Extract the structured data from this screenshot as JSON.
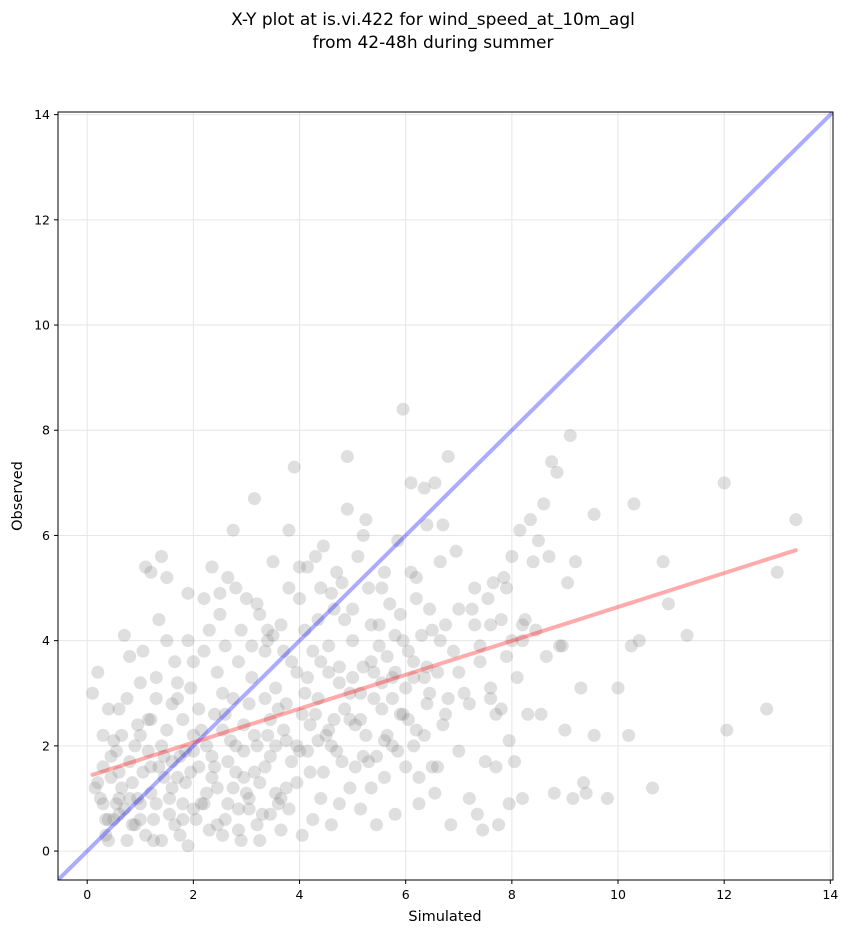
{
  "chart_data": {
    "type": "scatter",
    "title_lines": [
      "X-Y plot at is.vi.422 for wind_speed_at_10m_agl",
      "from 42-48h during summer"
    ],
    "xlabel": "Simulated",
    "ylabel": "Observed",
    "xlim": [
      -0.55,
      14.05
    ],
    "ylim": [
      -0.55,
      14.05
    ],
    "x_ticks": [
      0,
      2,
      4,
      6,
      8,
      10,
      12,
      14
    ],
    "y_ticks": [
      0,
      2,
      4,
      6,
      8,
      10,
      12,
      14
    ],
    "grid": true,
    "point_color": "#808080",
    "point_opacity": 0.25,
    "identity_line": {
      "color": "#0000ff",
      "opacity": 0.33,
      "x": [
        -0.55,
        14.05
      ],
      "y": [
        -0.55,
        14.05
      ]
    },
    "fit_line": {
      "color": "#ff0000",
      "opacity": 0.33,
      "x": [
        0.1,
        13.35
      ],
      "y": [
        1.45,
        5.72
      ]
    },
    "points": [
      [
        0.1,
        3.0
      ],
      [
        0.2,
        3.4
      ],
      [
        0.15,
        1.2
      ],
      [
        0.3,
        1.6
      ],
      [
        0.35,
        0.6
      ],
      [
        0.4,
        2.7
      ],
      [
        0.3,
        0.9
      ],
      [
        0.4,
        0.2
      ],
      [
        0.45,
        1.4
      ],
      [
        0.5,
        0.6
      ],
      [
        0.55,
        1.9
      ],
      [
        0.6,
        1.0
      ],
      [
        0.65,
        2.2
      ],
      [
        0.7,
        4.1
      ],
      [
        0.75,
        2.9
      ],
      [
        0.8,
        3.7
      ],
      [
        0.85,
        1.3
      ],
      [
        0.9,
        0.5
      ],
      [
        0.95,
        2.4
      ],
      [
        1.0,
        0.9
      ],
      [
        1.05,
        3.8
      ],
      [
        1.1,
        5.4
      ],
      [
        1.15,
        2.5
      ],
      [
        1.2,
        1.6
      ],
      [
        1.25,
        0.2
      ],
      [
        1.3,
        3.3
      ],
      [
        1.35,
        4.4
      ],
      [
        1.4,
        5.6
      ],
      [
        1.45,
        1.8
      ],
      [
        1.5,
        5.2
      ],
      [
        1.55,
        0.7
      ],
      [
        1.6,
        2.8
      ],
      [
        1.65,
        3.6
      ],
      [
        1.7,
        1.4
      ],
      [
        1.75,
        0.3
      ],
      [
        1.8,
        2.5
      ],
      [
        1.85,
        1.9
      ],
      [
        1.9,
        4.9
      ],
      [
        1.95,
        3.1
      ],
      [
        2.0,
        0.8
      ],
      [
        0.3,
        2.2
      ],
      [
        0.6,
        0.7
      ],
      [
        0.9,
        2.0
      ],
      [
        1.2,
        1.1
      ],
      [
        1.5,
        2.3
      ],
      [
        1.8,
        0.9
      ],
      [
        2.1,
        1.6
      ],
      [
        2.2,
        3.8
      ],
      [
        2.3,
        0.4
      ],
      [
        2.35,
        5.4
      ],
      [
        2.4,
        2.6
      ],
      [
        2.45,
        1.2
      ],
      [
        2.5,
        4.9
      ],
      [
        2.55,
        3.0
      ],
      [
        2.6,
        0.6
      ],
      [
        2.65,
        5.2
      ],
      [
        2.7,
        2.1
      ],
      [
        2.75,
        6.1
      ],
      [
        2.8,
        1.5
      ],
      [
        2.85,
        3.6
      ],
      [
        2.9,
        0.2
      ],
      [
        2.95,
        2.4
      ],
      [
        3.0,
        4.8
      ],
      [
        3.05,
        1.0
      ],
      [
        3.1,
        3.3
      ],
      [
        3.15,
        6.7
      ],
      [
        3.2,
        2.0
      ],
      [
        3.25,
        4.5
      ],
      [
        3.3,
        0.7
      ],
      [
        3.35,
        2.9
      ],
      [
        3.4,
        4.0
      ],
      [
        3.45,
        1.8
      ],
      [
        3.5,
        5.5
      ],
      [
        3.55,
        3.1
      ],
      [
        3.6,
        0.9
      ],
      [
        3.65,
        4.3
      ],
      [
        3.7,
        2.3
      ],
      [
        3.75,
        1.2
      ],
      [
        3.8,
        6.1
      ],
      [
        3.85,
        3.6
      ],
      [
        3.9,
        7.3
      ],
      [
        3.95,
        2.0
      ],
      [
        4.0,
        4.8
      ],
      [
        4.05,
        0.3
      ],
      [
        4.1,
        3.0
      ],
      [
        4.15,
        5.4
      ],
      [
        4.2,
        1.5
      ],
      [
        4.25,
        3.8
      ],
      [
        4.3,
        2.6
      ],
      [
        4.35,
        4.4
      ],
      [
        4.4,
        1.0
      ],
      [
        4.45,
        5.8
      ],
      [
        4.5,
        2.2
      ],
      [
        4.55,
        3.4
      ],
      [
        4.6,
        0.5
      ],
      [
        4.65,
        4.6
      ],
      [
        4.7,
        1.9
      ],
      [
        4.75,
        3.2
      ],
      [
        4.8,
        5.1
      ],
      [
        4.85,
        2.7
      ],
      [
        4.9,
        7.5
      ],
      [
        4.95,
        1.2
      ],
      [
        5.0,
        4.0
      ],
      [
        5.05,
        2.4
      ],
      [
        5.1,
        5.6
      ],
      [
        5.15,
        0.8
      ],
      [
        5.2,
        3.5
      ],
      [
        5.25,
        6.3
      ],
      [
        5.3,
        1.7
      ],
      [
        5.35,
        4.3
      ],
      [
        5.4,
        2.9
      ],
      [
        5.45,
        0.5
      ],
      [
        5.5,
        3.9
      ],
      [
        5.55,
        5.0
      ],
      [
        5.6,
        1.4
      ],
      [
        5.65,
        2.2
      ],
      [
        5.7,
        4.7
      ],
      [
        5.75,
        3.3
      ],
      [
        5.8,
        0.7
      ],
      [
        5.85,
        5.9
      ],
      [
        5.9,
        2.6
      ],
      [
        5.95,
        8.4
      ],
      [
        6.0,
        1.6
      ],
      [
        6.05,
        3.8
      ],
      [
        6.1,
        7.0
      ],
      [
        6.15,
        2.0
      ],
      [
        6.2,
        5.2
      ],
      [
        6.25,
        0.9
      ],
      [
        6.3,
        4.1
      ],
      [
        6.35,
        6.9
      ],
      [
        6.4,
        2.8
      ],
      [
        6.45,
        4.6
      ],
      [
        6.5,
        1.6
      ],
      [
        6.55,
        7.0
      ],
      [
        6.6,
        3.4
      ],
      [
        6.65,
        5.5
      ],
      [
        6.7,
        2.4
      ],
      [
        6.75,
        4.3
      ],
      [
        6.8,
        7.5
      ],
      [
        6.85,
        0.5
      ],
      [
        6.9,
        3.8
      ],
      [
        6.95,
        5.7
      ],
      [
        7.0,
        1.9
      ],
      [
        7.1,
        3.0
      ],
      [
        7.2,
        1.0
      ],
      [
        7.25,
        4.6
      ],
      [
        7.3,
        5.0
      ],
      [
        7.35,
        0.7
      ],
      [
        7.4,
        3.6
      ],
      [
        7.45,
        0.4
      ],
      [
        7.5,
        1.7
      ],
      [
        7.55,
        4.8
      ],
      [
        7.6,
        2.9
      ],
      [
        7.65,
        5.1
      ],
      [
        7.7,
        1.6
      ],
      [
        7.75,
        0.5
      ],
      [
        7.8,
        4.4
      ],
      [
        7.85,
        5.2
      ],
      [
        7.9,
        3.7
      ],
      [
        7.95,
        2.1
      ],
      [
        8.0,
        5.6
      ],
      [
        8.05,
        1.7
      ],
      [
        8.1,
        3.3
      ],
      [
        8.15,
        6.1
      ],
      [
        8.2,
        1.0
      ],
      [
        8.25,
        4.4
      ],
      [
        8.3,
        2.6
      ],
      [
        8.35,
        6.3
      ],
      [
        8.4,
        5.5
      ],
      [
        8.5,
        5.9
      ],
      [
        8.55,
        2.6
      ],
      [
        8.6,
        6.6
      ],
      [
        8.65,
        3.7
      ],
      [
        8.75,
        7.4
      ],
      [
        8.8,
        1.1
      ],
      [
        8.85,
        7.2
      ],
      [
        8.9,
        3.9
      ],
      [
        9.0,
        2.3
      ],
      [
        9.05,
        5.1
      ],
      [
        9.1,
        7.9
      ],
      [
        9.15,
        1.0
      ],
      [
        9.3,
        3.1
      ],
      [
        9.35,
        1.3
      ],
      [
        9.4,
        1.1
      ],
      [
        9.55,
        6.4
      ],
      [
        9.55,
        2.2
      ],
      [
        9.8,
        1.0
      ],
      [
        10.0,
        3.1
      ],
      [
        10.2,
        2.2
      ],
      [
        10.25,
        3.9
      ],
      [
        10.3,
        6.6
      ],
      [
        10.4,
        4.0
      ],
      [
        10.65,
        1.2
      ],
      [
        10.85,
        5.5
      ],
      [
        10.95,
        4.7
      ],
      [
        11.3,
        4.1
      ],
      [
        12.0,
        7.0
      ],
      [
        12.05,
        2.3
      ],
      [
        12.8,
        2.7
      ],
      [
        13.0,
        5.3
      ],
      [
        13.35,
        6.3
      ],
      [
        0.2,
        1.3
      ],
      [
        0.5,
        2.1
      ],
      [
        0.7,
        0.8
      ],
      [
        0.8,
        1.7
      ],
      [
        1.0,
        2.2
      ],
      [
        1.1,
        0.3
      ],
      [
        1.3,
        0.9
      ],
      [
        1.4,
        2.0
      ],
      [
        1.6,
        1.2
      ],
      [
        1.7,
        2.9
      ],
      [
        1.9,
        0.1
      ],
      [
        2.0,
        1.9
      ],
      [
        2.1,
        2.7
      ],
      [
        2.15,
        0.9
      ],
      [
        2.25,
        2.0
      ],
      [
        2.35,
        1.4
      ],
      [
        2.45,
        3.4
      ],
      [
        2.55,
        0.3
      ],
      [
        2.65,
        1.7
      ],
      [
        2.75,
        2.9
      ],
      [
        2.85,
        0.8
      ],
      [
        2.95,
        1.9
      ],
      [
        3.05,
        2.8
      ],
      [
        3.15,
        1.5
      ],
      [
        3.25,
        0.2
      ],
      [
        3.35,
        3.8
      ],
      [
        3.45,
        2.5
      ],
      [
        3.55,
        1.1
      ],
      [
        3.65,
        0.4
      ],
      [
        3.75,
        2.8
      ],
      [
        3.85,
        1.7
      ],
      [
        3.95,
        3.4
      ],
      [
        4.05,
        2.6
      ],
      [
        4.15,
        1.9
      ],
      [
        4.25,
        0.6
      ],
      [
        4.35,
        2.9
      ],
      [
        4.45,
        1.5
      ],
      [
        4.55,
        3.9
      ],
      [
        4.65,
        2.5
      ],
      [
        4.75,
        0.9
      ],
      [
        4.85,
        4.4
      ],
      [
        4.95,
        3.0
      ],
      [
        5.05,
        1.6
      ],
      [
        5.15,
        3.0
      ],
      [
        5.25,
        2.2
      ],
      [
        5.35,
        3.6
      ],
      [
        5.45,
        1.8
      ],
      [
        5.55,
        2.7
      ],
      [
        5.65,
        3.7
      ],
      [
        5.75,
        2.0
      ],
      [
        5.85,
        1.9
      ],
      [
        5.95,
        4.0
      ],
      [
        6.05,
        2.5
      ],
      [
        6.15,
        3.3
      ],
      [
        6.25,
        1.4
      ],
      [
        6.35,
        2.2
      ],
      [
        6.45,
        3.0
      ],
      [
        6.55,
        1.1
      ],
      [
        6.65,
        4.0
      ],
      [
        6.75,
        2.6
      ],
      [
        0.25,
        1.0
      ],
      [
        0.45,
        1.8
      ],
      [
        0.65,
        1.2
      ],
      [
        0.85,
        0.5
      ],
      [
        1.05,
        1.5
      ],
      [
        1.25,
        0.6
      ],
      [
        1.45,
        1.4
      ],
      [
        1.65,
        0.5
      ],
      [
        1.85,
        1.3
      ],
      [
        2.05,
        0.6
      ],
      [
        2.25,
        1.1
      ],
      [
        2.45,
        0.5
      ],
      [
        2.65,
        0.9
      ],
      [
        2.85,
        0.4
      ],
      [
        3.05,
        0.8
      ],
      [
        3.25,
        1.3
      ],
      [
        3.45,
        0.7
      ],
      [
        3.65,
        1.0
      ],
      [
        0.35,
        0.3
      ],
      [
        0.55,
        0.9
      ],
      [
        0.75,
        0.2
      ],
      [
        0.95,
        1.0
      ],
      [
        1.15,
        1.9
      ],
      [
        1.35,
        1.6
      ],
      [
        1.55,
        1.0
      ],
      [
        1.75,
        1.8
      ],
      [
        1.95,
        1.5
      ],
      [
        2.15,
        2.3
      ],
      [
        2.35,
        1.8
      ],
      [
        2.55,
        2.3
      ],
      [
        2.75,
        1.2
      ],
      [
        2.95,
        1.4
      ],
      [
        3.15,
        2.2
      ],
      [
        3.35,
        1.6
      ],
      [
        3.55,
        2.0
      ],
      [
        3.75,
        2.1
      ],
      [
        3.95,
        1.3
      ],
      [
        4.15,
        3.3
      ],
      [
        4.35,
        2.1
      ],
      [
        4.55,
        2.3
      ],
      [
        4.75,
        3.5
      ],
      [
        4.95,
        2.5
      ],
      [
        5.15,
        2.5
      ],
      [
        5.35,
        1.2
      ],
      [
        5.55,
        3.2
      ],
      [
        5.75,
        2.9
      ],
      [
        5.95,
        2.6
      ],
      [
        6.15,
        3.6
      ],
      [
        6.35,
        3.3
      ],
      [
        0.6,
        2.7
      ],
      [
        1.0,
        3.2
      ],
      [
        1.3,
        2.9
      ],
      [
        1.7,
        3.2
      ],
      [
        2.0,
        3.6
      ],
      [
        2.3,
        4.2
      ],
      [
        2.6,
        3.9
      ],
      [
        2.9,
        4.2
      ],
      [
        3.2,
        4.7
      ],
      [
        3.5,
        4.1
      ],
      [
        3.8,
        5.0
      ],
      [
        4.1,
        4.2
      ],
      [
        4.4,
        5.0
      ],
      [
        4.7,
        5.3
      ],
      [
        5.0,
        4.6
      ],
      [
        5.3,
        5.0
      ],
      [
        5.6,
        5.3
      ],
      [
        5.9,
        4.5
      ],
      [
        6.2,
        4.8
      ],
      [
        6.5,
        4.2
      ],
      [
        0.4,
        0.6
      ],
      [
        0.6,
        1.5
      ],
      [
        0.8,
        1.0
      ],
      [
        1.0,
        0.6
      ],
      [
        1.2,
        2.5
      ],
      [
        1.4,
        0.2
      ],
      [
        1.6,
        1.7
      ],
      [
        1.8,
        0.6
      ],
      [
        2.0,
        2.2
      ],
      [
        2.2,
        0.9
      ],
      [
        2.4,
        1.6
      ],
      [
        2.6,
        2.6
      ],
      [
        2.8,
        2.0
      ],
      [
        3.0,
        1.1
      ],
      [
        3.2,
        0.5
      ],
      [
        3.4,
        2.2
      ],
      [
        3.6,
        2.7
      ],
      [
        3.8,
        0.8
      ],
      [
        4.0,
        1.9
      ],
      [
        4.2,
        2.4
      ],
      [
        4.4,
        3.6
      ],
      [
        4.6,
        2.0
      ],
      [
        4.8,
        1.7
      ],
      [
        5.0,
        3.3
      ],
      [
        5.2,
        1.8
      ],
      [
        5.4,
        3.4
      ],
      [
        5.6,
        2.1
      ],
      [
        5.8,
        3.4
      ],
      [
        6.0,
        3.1
      ],
      [
        6.2,
        2.3
      ],
      [
        6.4,
        3.5
      ],
      [
        6.6,
        1.6
      ],
      [
        6.8,
        2.9
      ],
      [
        7.0,
        3.4
      ],
      [
        7.2,
        2.8
      ],
      [
        7.4,
        3.9
      ],
      [
        7.6,
        3.1
      ],
      [
        7.8,
        2.7
      ],
      [
        8.0,
        4.0
      ],
      [
        8.2,
        4.0
      ],
      [
        1.2,
        5.3
      ],
      [
        1.5,
        4.0
      ],
      [
        1.9,
        4.0
      ],
      [
        2.2,
        4.8
      ],
      [
        2.5,
        4.5
      ],
      [
        2.8,
        5.0
      ],
      [
        3.1,
        3.9
      ],
      [
        3.4,
        4.2
      ],
      [
        3.7,
        3.8
      ],
      [
        4.0,
        5.4
      ],
      [
        4.3,
        5.6
      ],
      [
        4.6,
        4.9
      ],
      [
        4.9,
        6.5
      ],
      [
        5.2,
        6.0
      ],
      [
        5.5,
        4.3
      ],
      [
        5.8,
        4.1
      ],
      [
        6.1,
        5.3
      ],
      [
        6.4,
        6.2
      ],
      [
        6.7,
        6.2
      ],
      [
        7.0,
        4.6
      ],
      [
        7.3,
        4.3
      ],
      [
        7.6,
        4.3
      ],
      [
        7.9,
        5.0
      ],
      [
        8.2,
        4.3
      ],
      [
        8.45,
        4.2
      ],
      [
        8.7,
        5.6
      ],
      [
        8.95,
        3.9
      ],
      [
        9.2,
        5.5
      ],
      [
        7.7,
        2.6
      ],
      [
        7.95,
        0.9
      ]
    ]
  }
}
